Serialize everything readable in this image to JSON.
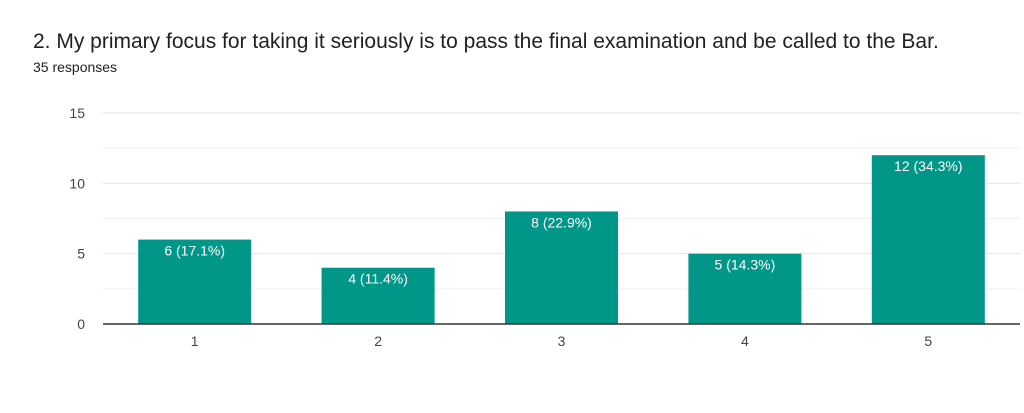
{
  "question": {
    "title": "2. My primary focus for taking it seriously is to pass the final examination and be called to the Bar.",
    "responses": "35 responses"
  },
  "colors": {
    "bar": "#009688",
    "grid": "#e6e6e6",
    "axis": "#333333",
    "text": "#202124",
    "tick": "#444444"
  },
  "chart_data": {
    "type": "bar",
    "categories": [
      "1",
      "2",
      "3",
      "4",
      "5"
    ],
    "values": [
      6,
      4,
      8,
      5,
      12
    ],
    "data_labels": [
      "6 (17.1%)",
      "4 (11.4%)",
      "8 (22.9%)",
      "5 (14.3%)",
      "12 (34.3%)"
    ],
    "yticks": [
      0,
      5,
      10,
      15
    ],
    "ylim": [
      0,
      15
    ],
    "grid": true,
    "title": "",
    "xlabel": "",
    "ylabel": ""
  }
}
